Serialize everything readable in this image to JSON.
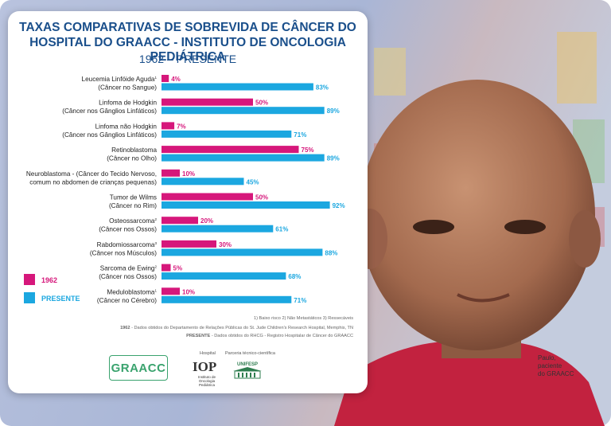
{
  "header": {
    "title_line1": "TAXAS COMPARATIVAS DE SOBREVIDA DE CÂNCER DO",
    "title_line2": "HOSPITAL DO GRAACC - INSTITUTO DE ONCOLOGIA PEDIÁTRICA",
    "period": "1962 – PRESENTE"
  },
  "colors": {
    "series_1962": "#d6177b",
    "series_presente": "#1ba7e0",
    "title": "#1a4f8b"
  },
  "chart_data": {
    "type": "bar",
    "orientation": "horizontal",
    "title": "TAXAS COMPARATIVAS DE SOBREVIDA DE CÂNCER DO HOSPITAL DO GRAACC - INSTITUTO DE ONCOLOGIA PEDIÁTRICA",
    "subtitle": "1962 – PRESENTE",
    "xlim": [
      0,
      100
    ],
    "unit": "%",
    "categories": [
      {
        "line1": "Leucemia Linfóide Aguda",
        "sup": "1",
        "line2": "(Câncer no Sangue)"
      },
      {
        "line1": "Linfoma de Hodgkin",
        "sup": "",
        "line2": "(Câncer nos Gânglios Linfáticos)"
      },
      {
        "line1": "Linfoma não Hodgkin",
        "sup": "",
        "line2": "(Câncer nos Gânglios Linfáticos)"
      },
      {
        "line1": "Retinoblastoma",
        "sup": "",
        "line2": "(Câncer no Olho)"
      },
      {
        "line1": "Neuroblastoma - (Câncer do Tecido Nervoso,",
        "sup": "",
        "line2": "comum no abdomen de crianças pequenas)"
      },
      {
        "line1": "Tumor de Wilms",
        "sup": "",
        "line2": "(Câncer no Rim)"
      },
      {
        "line1": "Osteossarcoma",
        "sup": "2",
        "line2": "(Câncer nos Ossos)"
      },
      {
        "line1": "Rabdomiossarcoma",
        "sup": "3",
        "line2": "(Câncer nos Músculos)"
      },
      {
        "line1": "Sarcoma de Ewing",
        "sup": "2",
        "line2": "(Câncer nos Ossos)"
      },
      {
        "line1": "Meduloblastoma",
        "sup": "1",
        "line2": "(Câncer no Cérebro)"
      }
    ],
    "series": [
      {
        "name": "1962",
        "values": [
          4,
          50,
          7,
          75,
          10,
          50,
          20,
          30,
          5,
          10
        ]
      },
      {
        "name": "PRESENTE",
        "values": [
          83,
          89,
          71,
          89,
          45,
          92,
          61,
          88,
          68,
          71
        ]
      }
    ],
    "legend": [
      "1962",
      "PRESENTE"
    ],
    "legend_position": "bottom-left"
  },
  "notes": {
    "footnote": "1) Baixo risco 2) Não Metastáticos 3) Ressecáveis",
    "source_1962_label": "1962",
    "source_1962": " - Dados obtidos do Departamento de Relações Públicas do St. Jude Children's Research Hospital, Memphis, TN",
    "source_presente_label": "PRESENTE",
    "source_presente": " - Dados obtidos do RHCG - Registro Hospitalar de Câncer do GRAACC"
  },
  "logos": {
    "graacc": "GRAACC",
    "hospital_label": "Hospital",
    "iop": "IOP",
    "iop_sub": "Instituto de Oncologia Pediátrica",
    "partner_label": "Parceria técnico-científica",
    "unifesp": "UNIFESP"
  },
  "caption": {
    "line1": "Paulo,",
    "line2": "paciente",
    "line3": "do GRAACC"
  }
}
